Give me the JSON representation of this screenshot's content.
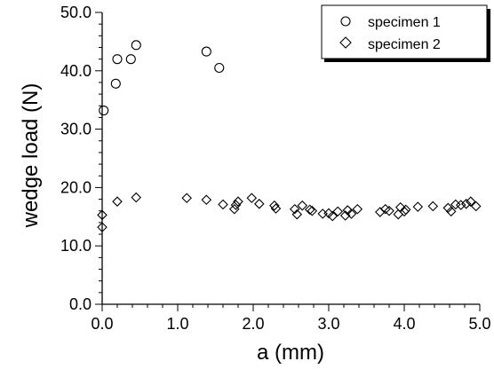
{
  "chart_data": {
    "type": "scatter",
    "title": "",
    "xlabel": "a (mm)",
    "ylabel": "wedge load (N)",
    "xlim": [
      0.0,
      5.0
    ],
    "ylim": [
      0.0,
      50.0
    ],
    "x_ticks": [
      "0.0",
      "1.0",
      "2.0",
      "3.0",
      "4.0",
      "5.0"
    ],
    "y_ticks": [
      "0.0",
      "10.0",
      "20.0",
      "30.0",
      "40.0",
      "50.0"
    ],
    "legend_position": "top-right",
    "grid": false,
    "series": [
      {
        "name": "specimen 1",
        "marker": "circle",
        "points": [
          [
            0.02,
            33.2
          ],
          [
            0.18,
            37.8
          ],
          [
            0.2,
            42.0
          ],
          [
            0.38,
            42.0
          ],
          [
            0.45,
            44.4
          ],
          [
            1.38,
            43.3
          ],
          [
            1.55,
            40.5
          ]
        ]
      },
      {
        "name": "specimen 2",
        "marker": "diamond",
        "points": [
          [
            0.0,
            13.2
          ],
          [
            0.0,
            15.3
          ],
          [
            0.2,
            17.6
          ],
          [
            0.45,
            18.3
          ],
          [
            1.12,
            18.2
          ],
          [
            1.38,
            17.9
          ],
          [
            1.6,
            17.1
          ],
          [
            1.75,
            16.3
          ],
          [
            1.77,
            17.0
          ],
          [
            1.8,
            17.6
          ],
          [
            1.98,
            18.2
          ],
          [
            2.08,
            17.2
          ],
          [
            2.28,
            16.9
          ],
          [
            2.3,
            16.4
          ],
          [
            2.55,
            16.3
          ],
          [
            2.58,
            15.4
          ],
          [
            2.65,
            16.9
          ],
          [
            2.75,
            16.2
          ],
          [
            2.78,
            16.0
          ],
          [
            2.92,
            15.5
          ],
          [
            3.0,
            15.6
          ],
          [
            3.05,
            15.1
          ],
          [
            3.12,
            15.9
          ],
          [
            3.22,
            15.2
          ],
          [
            3.25,
            16.1
          ],
          [
            3.3,
            15.5
          ],
          [
            3.38,
            16.3
          ],
          [
            3.68,
            15.8
          ],
          [
            3.75,
            16.3
          ],
          [
            3.8,
            16.0
          ],
          [
            3.92,
            15.4
          ],
          [
            3.95,
            16.6
          ],
          [
            4.0,
            15.9
          ],
          [
            4.02,
            16.2
          ],
          [
            4.18,
            16.7
          ],
          [
            4.38,
            16.8
          ],
          [
            4.58,
            16.5
          ],
          [
            4.62,
            15.9
          ],
          [
            4.68,
            17.1
          ],
          [
            4.75,
            17.0
          ],
          [
            4.82,
            17.2
          ],
          [
            4.88,
            17.6
          ],
          [
            4.95,
            16.8
          ]
        ]
      }
    ]
  }
}
